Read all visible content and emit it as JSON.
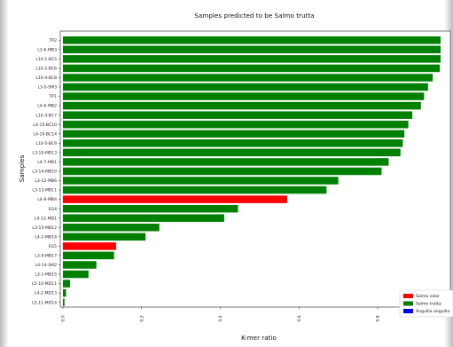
{
  "chart_data": {
    "type": "bar",
    "orientation": "horizontal",
    "title": "Samples predicted to be Salmo trutta",
    "xlabel": "K-mer ratio",
    "ylabel": "Samples",
    "xlim": [
      0,
      0.96
    ],
    "xticks": [
      "0.0",
      "0.2",
      "0.4",
      "0.6",
      "0.8"
    ],
    "grid": false,
    "legend_position": "bottom-right",
    "colors": {
      "Salmo salar": "#ff0000",
      "Salmo trutta": "#008000",
      "Anguilla anguilla": "#0000ff"
    },
    "legend": [
      "Salmo salar",
      "Salmo trutta",
      "Anguilla anguilla"
    ],
    "bars": [
      {
        "label": "TP2",
        "value": 0.96,
        "species": "Salmo trutta"
      },
      {
        "label": "L3-6-MB3",
        "value": 0.96,
        "species": "Salmo trutta"
      },
      {
        "label": "L10-1-BC5",
        "value": 0.96,
        "species": "Salmo trutta"
      },
      {
        "label": "L10-2-BC6",
        "value": 0.958,
        "species": "Salmo trutta"
      },
      {
        "label": "L10-4-BC8",
        "value": 0.94,
        "species": "Salmo trutta"
      },
      {
        "label": "L3-5-SM3",
        "value": 0.928,
        "species": "Salmo trutta"
      },
      {
        "label": "TP1",
        "value": 0.918,
        "species": "Salmo trutta"
      },
      {
        "label": "L4-6-MB2",
        "value": 0.91,
        "species": "Salmo trutta"
      },
      {
        "label": "L10-3-BC7",
        "value": 0.888,
        "species": "Salmo trutta"
      },
      {
        "label": "L4-15-BC10",
        "value": 0.878,
        "species": "Salmo trutta"
      },
      {
        "label": "L4-10-BC14",
        "value": 0.868,
        "species": "Salmo trutta"
      },
      {
        "label": "L10-5-BC9",
        "value": 0.864,
        "species": "Salmo trutta"
      },
      {
        "label": "L3-10-MB13",
        "value": 0.858,
        "species": "Salmo trutta"
      },
      {
        "label": "L4-7-MB1",
        "value": 0.828,
        "species": "Salmo trutta"
      },
      {
        "label": "L3-14-MB10",
        "value": 0.81,
        "species": "Salmo trutta"
      },
      {
        "label": "L3-12-MB6",
        "value": 0.7,
        "species": "Salmo trutta"
      },
      {
        "label": "L3-13-MB11",
        "value": 0.67,
        "species": "Salmo trutta"
      },
      {
        "label": "L4-8-MB4",
        "value": 0.57,
        "species": "Salmo salar"
      },
      {
        "label": "EG4",
        "value": 0.445,
        "species": "Salmo trutta"
      },
      {
        "label": "L4-12-MD1",
        "value": 0.41,
        "species": "Salmo trutta"
      },
      {
        "label": "L3-15-MB12",
        "value": 0.245,
        "species": "Salmo trutta"
      },
      {
        "label": "L4-1-MB14",
        "value": 0.21,
        "species": "Salmo trutta"
      },
      {
        "label": "EG5",
        "value": 0.135,
        "species": "Salmo salar"
      },
      {
        "label": "L3-9-MB17",
        "value": 0.13,
        "species": "Salmo trutta"
      },
      {
        "label": "L4-14-SM2",
        "value": 0.085,
        "species": "Salmo trutta"
      },
      {
        "label": "L3-1-MB15",
        "value": 0.065,
        "species": "Salmo trutta"
      },
      {
        "label": "L5-10-MD11",
        "value": 0.018,
        "species": "Salmo trutta"
      },
      {
        "label": "L4-2-MD13",
        "value": 0.008,
        "species": "Salmo trutta"
      },
      {
        "label": "L5-11-MD14",
        "value": 0.004,
        "species": "Salmo trutta"
      }
    ]
  }
}
